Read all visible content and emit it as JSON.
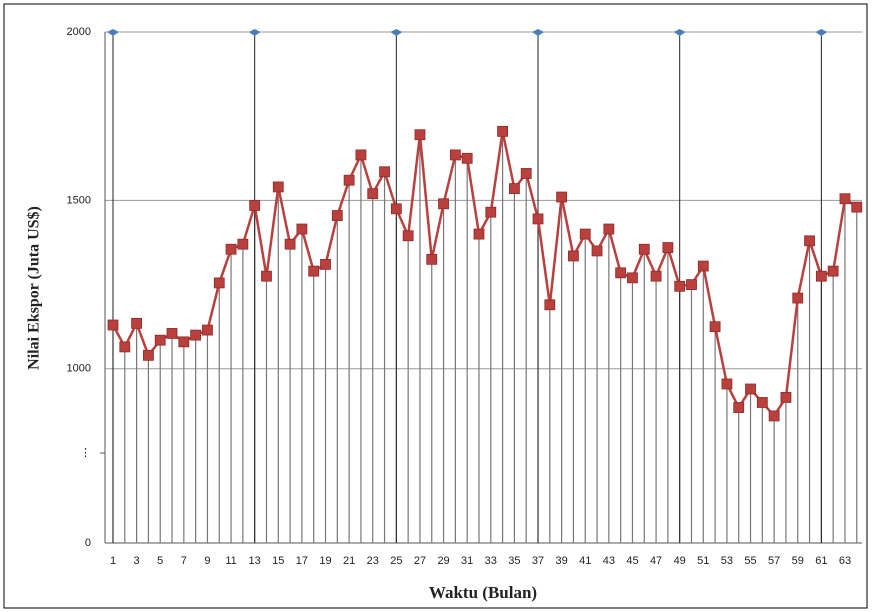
{
  "chart_data": {
    "type": "line",
    "y_label": "Nilai Ekspor (Juta US$)",
    "x_label": "Waktu (Bulan)",
    "categories": [
      1,
      null,
      3,
      null,
      5,
      null,
      7,
      null,
      9,
      null,
      11,
      null,
      13,
      null,
      15,
      null,
      17,
      null,
      19,
      null,
      21,
      null,
      23,
      null,
      25,
      null,
      27,
      null,
      29,
      null,
      31,
      null,
      33,
      null,
      35,
      null,
      37,
      null,
      39,
      null,
      41,
      null,
      43,
      null,
      45,
      null,
      47,
      null,
      49,
      null,
      51,
      null,
      53,
      null,
      55,
      null,
      57,
      null,
      59,
      null,
      61,
      null,
      63,
      null
    ],
    "series": [
      {
        "color": "#b9403d",
        "stem_color": "#777777",
        "values": [
          1130,
          1065,
          1135,
          1040,
          1085,
          1105,
          1080,
          1100,
          1115,
          1255,
          1355,
          1370,
          1485,
          1275,
          1540,
          1370,
          1415,
          1290,
          1310,
          1455,
          1560,
          1635,
          1520,
          1585,
          1475,
          1395,
          1695,
          1325,
          1490,
          1635,
          1625,
          1400,
          1465,
          1705,
          1535,
          1580,
          1445,
          1190,
          1510,
          1335,
          1400,
          1350,
          1415,
          1285,
          1270,
          1355,
          1275,
          1360,
          1245,
          1250,
          1305,
          1125,
          955,
          885,
          940,
          900,
          860,
          915,
          1210,
          1380,
          1275,
          1290,
          1505,
          1480
        ]
      },
      {
        "color": "#4a7ebb",
        "stem_color": "#222222",
        "values": [
          2000,
          null,
          null,
          null,
          null,
          null,
          null,
          null,
          null,
          null,
          null,
          null,
          2000,
          null,
          null,
          null,
          null,
          null,
          null,
          null,
          null,
          null,
          null,
          null,
          2000,
          null,
          null,
          null,
          null,
          null,
          null,
          null,
          null,
          null,
          null,
          null,
          2000,
          null,
          null,
          null,
          null,
          null,
          null,
          null,
          null,
          null,
          null,
          null,
          2000,
          null,
          null,
          null,
          null,
          null,
          null,
          null,
          null,
          null,
          null,
          null,
          2000,
          null,
          null,
          null
        ]
      }
    ],
    "ylim": [
      0,
      2000
    ],
    "ybreak": 750,
    "yticks": [
      0,
      {
        "value": 750,
        "label": "⋮"
      },
      1000,
      1500,
      2000
    ],
    "grid": true
  }
}
